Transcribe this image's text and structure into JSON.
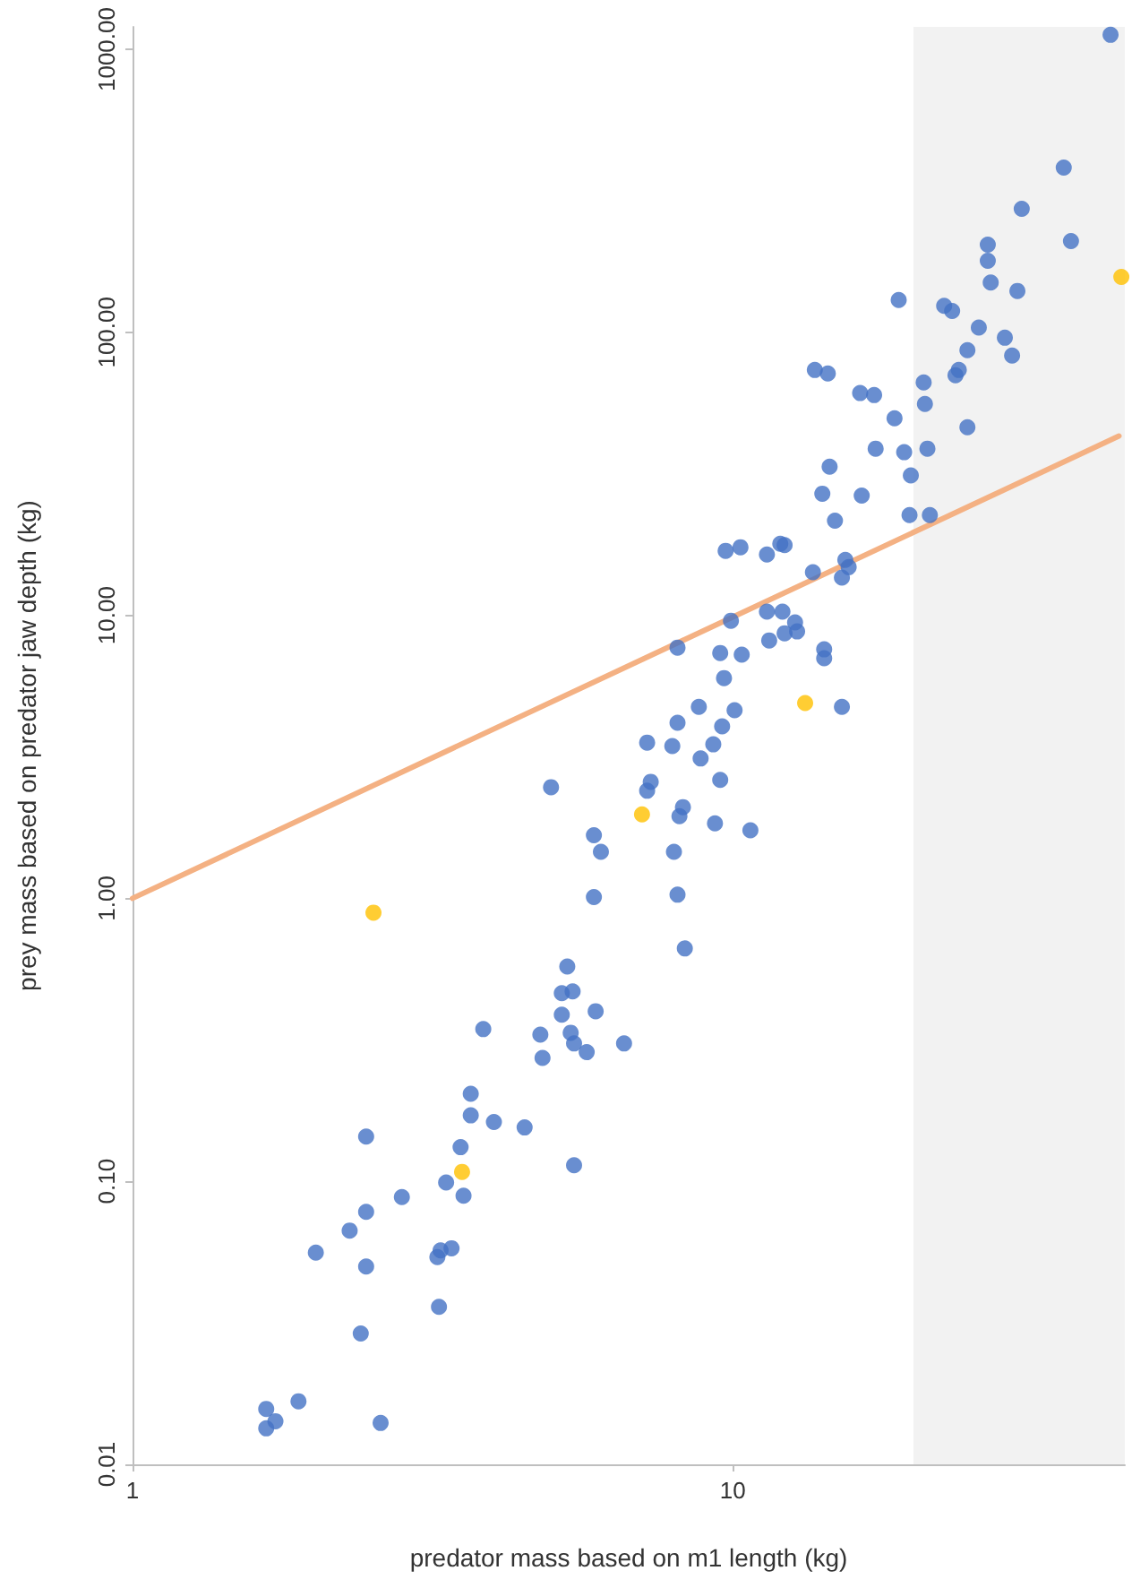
{
  "chart_data": {
    "type": "scatter",
    "xlabel": "predator mass based on m1 length (kg)",
    "ylabel": "prey mass based on predator jaw depth (kg)",
    "log": "xy",
    "xlim": [
      1,
      45
    ],
    "ylim": [
      0.01,
      1200
    ],
    "xticks": [
      1,
      10
    ],
    "yticks": [
      {
        "value": 0.01,
        "label": "0.01"
      },
      {
        "value": 0.1,
        "label": "0.10"
      },
      {
        "value": 1,
        "label": "1.00"
      },
      {
        "value": 10,
        "label": "10.00"
      },
      {
        "value": 100,
        "label": "100.00"
      },
      {
        "value": 1000,
        "label": "1000.00"
      }
    ],
    "grid": false,
    "marker": "circle",
    "bands": [
      {
        "axis": "x",
        "from": 20,
        "to": 45,
        "color": "#f2f2f2"
      }
    ],
    "series": [
      {
        "color": "#4472c4",
        "x": [
          1.67,
          1.73,
          1.67,
          1.89,
          2.59,
          2.4,
          3.24,
          3.22,
          3.26,
          3.4,
          2.45,
          2.02,
          2.3,
          2.45,
          2.81,
          3.56,
          3.33,
          3.52,
          5.44,
          2.45,
          4.5,
          4.0,
          3.66,
          3.66,
          4.82,
          3.84,
          5.71,
          5.44,
          6.59,
          5.37,
          4.78,
          5.19,
          5.91,
          5.19,
          5.41,
          5.3,
          5.87,
          8.32,
          8.09,
          5.87,
          6.03,
          7.98,
          10.7,
          9.34,
          8.15,
          8.26,
          4.98,
          7.2,
          7.3,
          9.53,
          8.84,
          7.2,
          7.93,
          9.28,
          9.6,
          8.09,
          8.78,
          10.07,
          15.2,
          9.67,
          14.2,
          14.2,
          9.53,
          10.35,
          8.09,
          11.5,
          12.2,
          12.8,
          12.7,
          9.93,
          11.4,
          12.1,
          15.6,
          15.2,
          15.4,
          13.6,
          11.4,
          12.0,
          12.2,
          10.3,
          9.73,
          14.8,
          19.7,
          21.3,
          14.1,
          16.4,
          19.8,
          14.5,
          17.3,
          19.3,
          21.1,
          24.6,
          18.6,
          16.3,
          17.2,
          20.9,
          20.8,
          13.7,
          14.4,
          23.8,
          23.5,
          24.6,
          29.2,
          25.7,
          28.4,
          18.9,
          22.5,
          23.2,
          29.8,
          26.9,
          26.6,
          26.6,
          36.6,
          30.3,
          35.6,
          42.6
        ],
        "values": [
          0.0134,
          0.0142,
          0.0157,
          0.0167,
          0.014,
          0.029,
          0.036,
          0.054,
          0.057,
          0.058,
          0.05,
          0.056,
          0.067,
          0.078,
          0.088,
          0.089,
          0.099,
          0.132,
          0.114,
          0.144,
          0.155,
          0.162,
          0.171,
          0.204,
          0.273,
          0.345,
          0.286,
          0.307,
          0.307,
          0.335,
          0.33,
          0.388,
          0.399,
          0.462,
          0.469,
          0.574,
          1.01,
          0.665,
          1.03,
          1.67,
          1.46,
          1.46,
          1.74,
          1.84,
          1.95,
          2.1,
          2.47,
          2.4,
          2.58,
          2.62,
          3.12,
          3.55,
          3.45,
          3.5,
          4.05,
          4.17,
          4.75,
          4.62,
          4.75,
          6.0,
          7.58,
          7.05,
          7.36,
          7.26,
          7.69,
          8.15,
          8.64,
          8.77,
          9.44,
          9.57,
          10.3,
          10.3,
          14.8,
          13.6,
          15.7,
          14.2,
          16.4,
          17.9,
          17.7,
          17.4,
          16.9,
          21.6,
          22.6,
          22.6,
          26.9,
          26.5,
          31.2,
          33.5,
          38.8,
          37.7,
          38.8,
          46.2,
          49.7,
          61.0,
          60.0,
          55.8,
          66.5,
          73.6,
          71.5,
          73.6,
          70.5,
          86.5,
          82.8,
          104,
          95.7,
          130,
          124,
          119,
          140,
          150,
          179,
          204,
          210,
          273,
          382,
          1125
        ]
      },
      {
        "color": "#ffc000",
        "x": [
          2.52,
          3.54,
          7.06,
          13.2,
          44.4
        ],
        "values": [
          0.89,
          0.108,
          1.98,
          4.9,
          157
        ]
      },
      {
        "type": "line",
        "color": "#f4b183",
        "marker": "none",
        "line_style": "solid",
        "x": [
          1,
          44
        ],
        "values": [
          1,
          43
        ]
      }
    ]
  }
}
